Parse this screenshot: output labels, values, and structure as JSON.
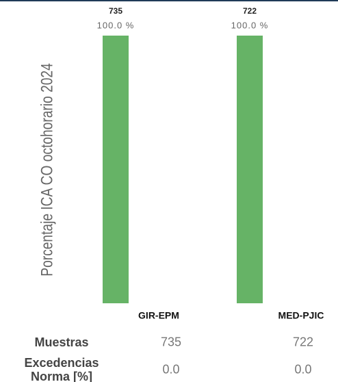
{
  "chart_data": {
    "type": "bar",
    "y_label": "Porcentaje ICA CO octohorario 2024",
    "categories": [
      "GIR-EPM",
      "MED-PJIC"
    ],
    "totals": [
      735,
      722
    ],
    "series": [
      {
        "color": "#66b366",
        "values": [
          100,
          100
        ],
        "value_labels": [
          "100.0 %",
          "100.0 %"
        ]
      }
    ],
    "ylim": [
      0,
      100
    ]
  },
  "table": {
    "rows": [
      {
        "label": "Muestras",
        "values": [
          735,
          722
        ]
      },
      {
        "label": "Excedencias Norma [%]",
        "values": [
          0,
          0
        ],
        "value_labels": [
          "0.0",
          "0.0"
        ]
      }
    ]
  }
}
